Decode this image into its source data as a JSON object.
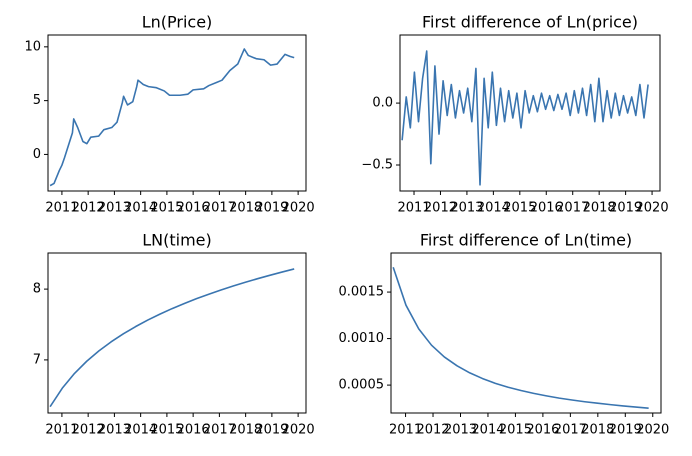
{
  "chart_data": [
    {
      "type": "line",
      "title": "Ln(Price)",
      "color": "#3a75b0",
      "x": [
        2010.55,
        2010.7,
        2010.9,
        2011.0,
        2011.1,
        2011.4,
        2011.45,
        2011.6,
        2011.8,
        2011.95,
        2012.1,
        2012.4,
        2012.6,
        2012.9,
        2013.1,
        2013.3,
        2013.35,
        2013.5,
        2013.7,
        2013.85,
        2013.9,
        2014.1,
        2014.3,
        2014.6,
        2014.9,
        2015.1,
        2015.5,
        2015.8,
        2016.0,
        2016.4,
        2016.6,
        2016.9,
        2017.1,
        2017.4,
        2017.7,
        2017.95,
        2018.1,
        2018.4,
        2018.7,
        2018.95,
        2019.2,
        2019.5,
        2019.7,
        2019.85
      ],
      "values": [
        -2.9,
        -2.7,
        -1.5,
        -1.0,
        -0.3,
        2.0,
        3.3,
        2.5,
        1.2,
        1.0,
        1.6,
        1.7,
        2.3,
        2.5,
        3.0,
        4.8,
        5.4,
        4.6,
        4.9,
        6.3,
        6.9,
        6.5,
        6.3,
        6.2,
        5.9,
        5.5,
        5.5,
        5.6,
        6.0,
        6.1,
        6.4,
        6.7,
        6.9,
        7.8,
        8.4,
        9.8,
        9.2,
        8.9,
        8.8,
        8.3,
        8.4,
        9.3,
        9.1,
        9.0
      ],
      "xlim": [
        2010.47,
        2020.3
      ],
      "xticks": [
        2011,
        2012,
        2013,
        2014,
        2015,
        2016,
        2017,
        2018,
        2019,
        2020
      ],
      "ylim": [
        -3.4,
        11.1
      ],
      "yticks": [
        0,
        5,
        10
      ]
    },
    {
      "type": "line",
      "title": "First difference of Ln(price)",
      "color": "#3a75b0",
      "x": [
        2010.55,
        2010.705,
        2010.86,
        2011.015,
        2011.17,
        2011.325,
        2011.48,
        2011.635,
        2011.79,
        2011.945,
        2012.1,
        2012.255,
        2012.41,
        2012.565,
        2012.72,
        2012.875,
        2013.03,
        2013.185,
        2013.34,
        2013.495,
        2013.65,
        2013.805,
        2013.96,
        2014.115,
        2014.27,
        2014.425,
        2014.58,
        2014.735,
        2014.89,
        2015.045,
        2015.2,
        2015.355,
        2015.51,
        2015.665,
        2015.82,
        2015.975,
        2016.13,
        2016.285,
        2016.44,
        2016.595,
        2016.75,
        2016.905,
        2017.06,
        2017.215,
        2017.37,
        2017.525,
        2017.68,
        2017.835,
        2017.99,
        2018.145,
        2018.3,
        2018.455,
        2018.61,
        2018.765,
        2018.92,
        2019.075,
        2019.23,
        2019.385,
        2019.54,
        2019.695,
        2019.85
      ],
      "values": [
        -0.3,
        0.05,
        -0.2,
        0.25,
        -0.15,
        0.2,
        0.42,
        -0.49,
        0.3,
        -0.25,
        0.18,
        -0.1,
        0.15,
        -0.12,
        0.1,
        -0.08,
        0.12,
        -0.15,
        0.28,
        -0.66,
        0.2,
        -0.2,
        0.25,
        -0.18,
        0.12,
        -0.15,
        0.1,
        -0.12,
        0.08,
        -0.2,
        0.1,
        -0.08,
        0.06,
        -0.07,
        0.08,
        -0.05,
        0.06,
        -0.06,
        0.07,
        -0.05,
        0.08,
        -0.1,
        0.1,
        -0.08,
        0.12,
        -0.1,
        0.15,
        -0.15,
        0.2,
        -0.15,
        0.1,
        -0.12,
        0.08,
        -0.1,
        0.06,
        -0.08,
        0.05,
        -0.1,
        0.15,
        -0.12,
        0.15
      ],
      "xlim": [
        2010.47,
        2020.3
      ],
      "xticks": [
        2011,
        2012,
        2013,
        2014,
        2015,
        2016,
        2017,
        2018,
        2019,
        2020
      ],
      "ylim": [
        -0.71,
        0.55
      ],
      "yticks": [
        {
          "value": -0.5,
          "label": "−0.5"
        },
        {
          "value": 0,
          "label": "0.0"
        }
      ]
    },
    {
      "type": "line",
      "title": "LN(time)",
      "color": "#3a75b0",
      "x": [
        2010.55,
        2011.015,
        2011.48,
        2011.945,
        2012.41,
        2012.875,
        2013.34,
        2013.805,
        2014.27,
        2014.735,
        2015.2,
        2015.665,
        2016.13,
        2016.595,
        2017.06,
        2017.525,
        2017.99,
        2018.455,
        2018.92,
        2019.385,
        2019.85
      ],
      "values": [
        6.339,
        6.601,
        6.809,
        6.981,
        7.127,
        7.255,
        7.368,
        7.47,
        7.563,
        7.647,
        7.725,
        7.797,
        7.865,
        7.928,
        7.988,
        8.044,
        8.097,
        8.147,
        8.195,
        8.241,
        8.285
      ],
      "xlim": [
        2010.47,
        2020.3
      ],
      "xticks": [
        2011,
        2012,
        2013,
        2014,
        2015,
        2016,
        2017,
        2018,
        2019,
        2020
      ],
      "ylim": [
        6.25,
        8.51
      ],
      "yticks": [
        7,
        8
      ]
    },
    {
      "type": "line",
      "title": "First difference of Ln(time)",
      "color": "#3a75b0",
      "x": [
        2010.55,
        2011.015,
        2011.48,
        2011.945,
        2012.41,
        2012.875,
        2013.34,
        2013.805,
        2014.27,
        2014.735,
        2015.2,
        2015.665,
        2016.13,
        2016.595,
        2017.06,
        2017.525,
        2017.99,
        2018.455,
        2018.92,
        2019.385,
        2019.85
      ],
      "values": [
        0.001767,
        0.001359,
        0.001104,
        0.000929,
        0.000803,
        0.000707,
        0.000631,
        0.00057,
        0.000519,
        0.000477,
        0.000442,
        0.000411,
        0.000384,
        0.00036,
        0.00034,
        0.000321,
        0.000305,
        0.00029,
        0.000276,
        0.000264,
        0.000252
      ],
      "xlim": [
        2010.47,
        2020.3
      ],
      "xticks": [
        2011,
        2012,
        2013,
        2014,
        2015,
        2016,
        2017,
        2018,
        2019,
        2020
      ],
      "ylim": [
        0.0002,
        0.00192
      ],
      "yticks": [
        0.0005,
        {
          "value": 0.001,
          "label": "0.0010"
        },
        0.0015
      ]
    }
  ]
}
